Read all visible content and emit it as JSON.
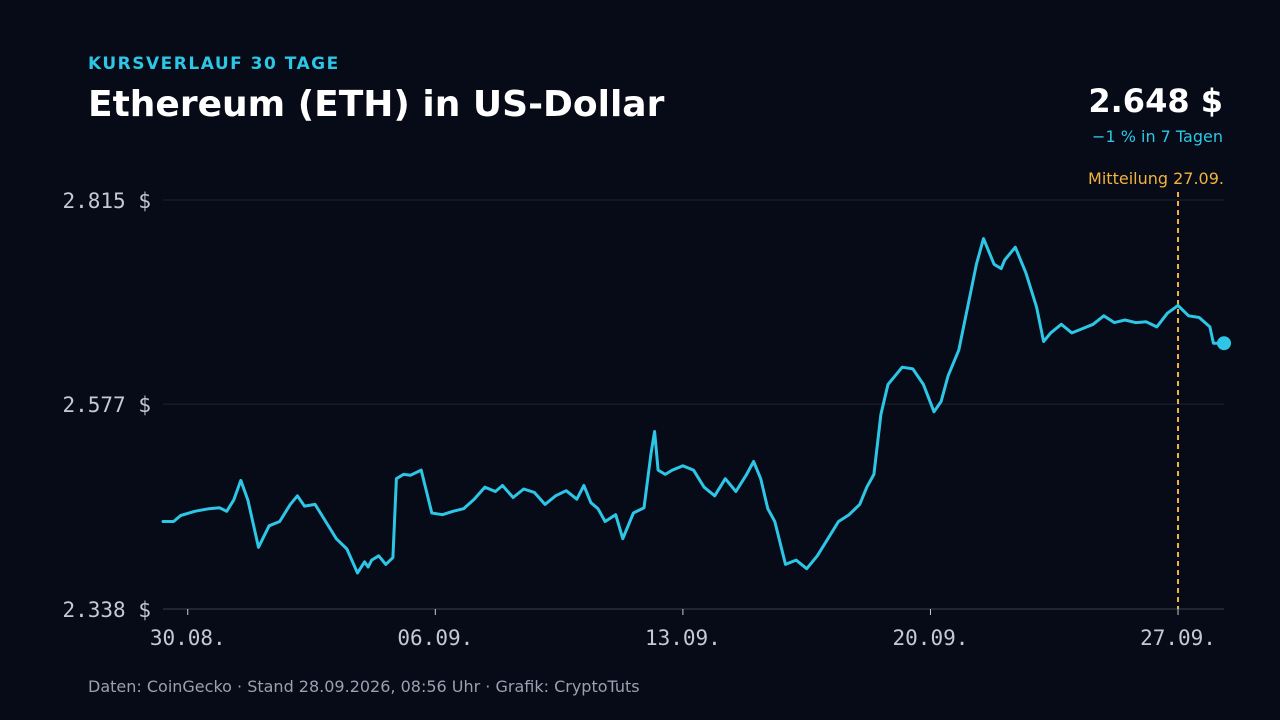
{
  "header": {
    "kicker": "KURSVERLAUF 30 TAGE",
    "title": "Ethereum (ETH) in US-Dollar",
    "price": "2.648 $",
    "change": "−1 % in 7 Tagen"
  },
  "footer": {
    "source": "Daten: CoinGecko · Stand 28.09.2026, 08:56 Uhr · Grafik: CryptoTuts"
  },
  "colors": {
    "background": "#070a17",
    "line": "#2ec6e6",
    "annotation": "#f2b33d",
    "grid": "#1f2433"
  },
  "chart_data": {
    "type": "line",
    "title": "Ethereum (ETH) in US-Dollar",
    "xlabel": "",
    "ylabel": "",
    "ylim": [
      2338,
      2815
    ],
    "yticks": [
      {
        "value": 2338,
        "label": "2.338 $"
      },
      {
        "value": 2577,
        "label": "2.577 $"
      },
      {
        "value": 2815,
        "label": "2.815 $"
      }
    ],
    "xticks": [
      {
        "day": 0,
        "label": "30.08."
      },
      {
        "day": 7,
        "label": "06.09."
      },
      {
        "day": 14,
        "label": "13.09."
      },
      {
        "day": 21,
        "label": "20.09."
      },
      {
        "day": 28,
        "label": "27.09."
      }
    ],
    "xlim": [
      -0.7,
      29.3
    ],
    "grid": true,
    "annotation": {
      "day": 28,
      "label": "Mitteilung 27.09."
    },
    "series": [
      {
        "x": [
          -0.7,
          -0.4,
          -0.2,
          0.2,
          0.6,
          0.9,
          1.1,
          1.3,
          1.5,
          1.7,
          2.0,
          2.3,
          2.6,
          2.9,
          3.1,
          3.3,
          3.6,
          3.9,
          4.2,
          4.5,
          4.8,
          5.0,
          5.1,
          5.2,
          5.4,
          5.6,
          5.8,
          5.9,
          6.1,
          6.3,
          6.6,
          6.9,
          7.2,
          7.5,
          7.8,
          8.1,
          8.4,
          8.7,
          8.9,
          9.2,
          9.5,
          9.8,
          10.1,
          10.4,
          10.7,
          11.0,
          11.2,
          11.4,
          11.6,
          11.8,
          12.1,
          12.3,
          12.6,
          12.9,
          13.1,
          13.2,
          13.3,
          13.5,
          13.7,
          14.0,
          14.3,
          14.6,
          14.9,
          15.2,
          15.5,
          15.8,
          16.0,
          16.2,
          16.4,
          16.6,
          16.9,
          17.2,
          17.5,
          17.8,
          18.1,
          18.4,
          18.7,
          19.0,
          19.2,
          19.4,
          19.6,
          19.8,
          20.0,
          20.2,
          20.5,
          20.8,
          21.1,
          21.3,
          21.5,
          21.8,
          22.1,
          22.3,
          22.5,
          22.8,
          23.0,
          23.1,
          23.4,
          23.7,
          24.0,
          24.2,
          24.4,
          24.7,
          25.0,
          25.3,
          25.6,
          25.9,
          26.2,
          26.5,
          26.8,
          27.1,
          27.4,
          27.7,
          28.0,
          28.3,
          28.6,
          28.9,
          29.0,
          29.3
        ],
        "y": [
          2440,
          2440,
          2447,
          2452,
          2455,
          2456,
          2452,
          2465,
          2488,
          2465,
          2410,
          2435,
          2440,
          2460,
          2470,
          2458,
          2460,
          2440,
          2420,
          2408,
          2380,
          2393,
          2387,
          2395,
          2400,
          2390,
          2398,
          2490,
          2495,
          2494,
          2500,
          2450,
          2448,
          2452,
          2455,
          2466,
          2480,
          2475,
          2482,
          2468,
          2478,
          2474,
          2460,
          2470,
          2476,
          2466,
          2482,
          2462,
          2455,
          2440,
          2448,
          2420,
          2450,
          2456,
          2520,
          2545,
          2500,
          2495,
          2500,
          2505,
          2500,
          2480,
          2470,
          2490,
          2475,
          2495,
          2510,
          2490,
          2455,
          2440,
          2390,
          2395,
          2385,
          2400,
          2420,
          2440,
          2448,
          2460,
          2480,
          2495,
          2565,
          2600,
          2610,
          2620,
          2618,
          2600,
          2568,
          2580,
          2610,
          2640,
          2700,
          2740,
          2770,
          2740,
          2735,
          2745,
          2760,
          2730,
          2690,
          2650,
          2660,
          2670,
          2660,
          2665,
          2670,
          2680,
          2672,
          2675,
          2672,
          2673,
          2667,
          2683,
          2692,
          2680,
          2678,
          2667,
          2648,
          2648
        ]
      }
    ]
  }
}
